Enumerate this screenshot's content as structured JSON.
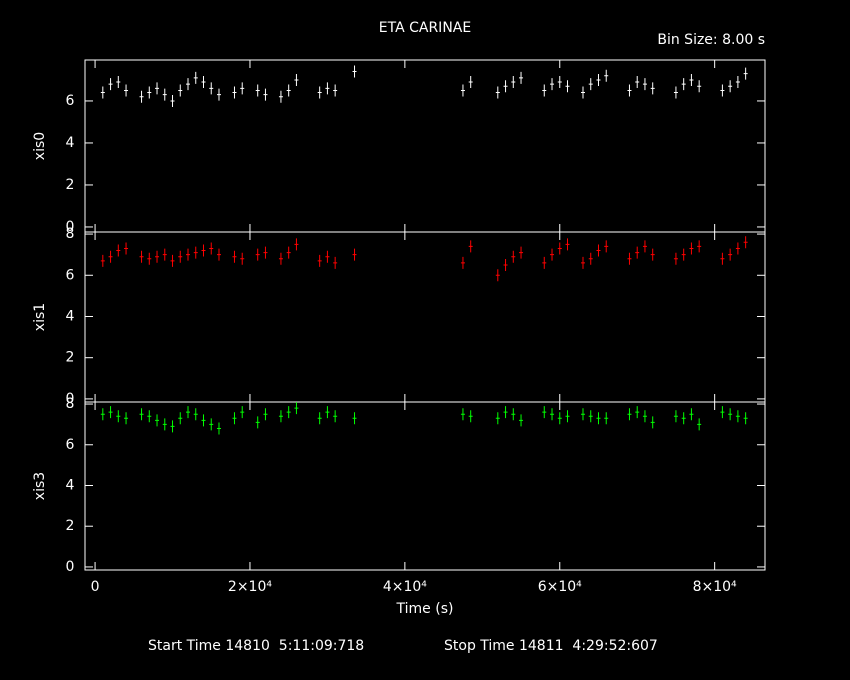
{
  "chart_data": {
    "type": "scatter",
    "title": "ETA CARINAE",
    "subtitle": "Bin Size: 8.00 s",
    "x_label": "Time (s)",
    "annotations": [
      "Start Time 14810  5:11:09:718",
      "Stop Time 14811  4:29:52:607"
    ],
    "x": [
      1000,
      2000,
      3000,
      4000,
      6000,
      7000,
      8000,
      9000,
      10000,
      11000,
      12000,
      13000,
      14000,
      15000,
      16000,
      18000,
      19000,
      21000,
      22000,
      24000,
      25000,
      26000,
      29000,
      30000,
      31000,
      33500,
      47500,
      48500,
      52000,
      53000,
      54000,
      55000,
      58000,
      59000,
      60000,
      61000,
      63000,
      64000,
      65000,
      66000,
      69000,
      70000,
      71000,
      72000,
      75000,
      76000,
      77000,
      78000,
      81000,
      82000,
      83000,
      84000
    ],
    "xlim": [
      -1300,
      86500
    ],
    "xticks": [
      0,
      {
        "value": 20000,
        "label": "2×10⁴"
      },
      {
        "value": 40000,
        "label": "4×10⁴"
      },
      {
        "value": 60000,
        "label": "6×10⁴"
      },
      {
        "value": 80000,
        "label": "8×10⁴"
      }
    ],
    "series": [
      {
        "name": "xis0",
        "color": "#ffffff",
        "ylim": [
          -0.24,
          7.95
        ],
        "yticks": [
          0,
          2,
          4,
          6
        ],
        "values": [
          6.4,
          6.8,
          6.9,
          6.5,
          6.2,
          6.4,
          6.6,
          6.3,
          6.0,
          6.5,
          6.8,
          7.1,
          6.9,
          6.6,
          6.3,
          6.4,
          6.6,
          6.5,
          6.3,
          6.2,
          6.5,
          7.0,
          6.4,
          6.6,
          6.5,
          7.4,
          6.5,
          6.9,
          6.4,
          6.7,
          6.9,
          7.1,
          6.5,
          6.8,
          6.9,
          6.7,
          6.4,
          6.8,
          7.0,
          7.2,
          6.5,
          6.9,
          6.8,
          6.6,
          6.4,
          6.8,
          7.0,
          6.7,
          6.5,
          6.7,
          6.9,
          7.3
        ]
      },
      {
        "name": "xis1",
        "color": "#ff0000",
        "ylim": [
          -0.15,
          8.1
        ],
        "yticks": [
          0,
          2,
          4,
          6,
          8
        ],
        "values": [
          6.7,
          6.9,
          7.2,
          7.3,
          6.9,
          6.8,
          6.9,
          7.0,
          6.7,
          6.9,
          7.0,
          7.1,
          7.2,
          7.3,
          7.0,
          6.9,
          6.8,
          7.0,
          7.1,
          6.8,
          7.1,
          7.5,
          6.7,
          6.9,
          6.6,
          7.0,
          6.6,
          7.4,
          6.0,
          6.5,
          6.9,
          7.1,
          6.6,
          7.0,
          7.3,
          7.5,
          6.6,
          6.8,
          7.2,
          7.4,
          6.8,
          7.1,
          7.4,
          7.0,
          6.8,
          7.0,
          7.3,
          7.4,
          6.8,
          7.0,
          7.3,
          7.6
        ]
      },
      {
        "name": "xis3",
        "color": "#00ff00",
        "ylim": [
          -0.15,
          8.1
        ],
        "yticks": [
          0,
          2,
          4,
          6,
          8
        ],
        "values": [
          7.5,
          7.6,
          7.4,
          7.3,
          7.5,
          7.4,
          7.2,
          7.0,
          6.9,
          7.3,
          7.6,
          7.5,
          7.2,
          7.0,
          6.8,
          7.3,
          7.6,
          7.1,
          7.5,
          7.4,
          7.6,
          7.8,
          7.3,
          7.6,
          7.4,
          7.3,
          7.5,
          7.4,
          7.3,
          7.6,
          7.5,
          7.2,
          7.6,
          7.5,
          7.3,
          7.4,
          7.5,
          7.4,
          7.3,
          7.3,
          7.5,
          7.6,
          7.4,
          7.1,
          7.4,
          7.3,
          7.5,
          7.0,
          7.6,
          7.5,
          7.4,
          7.3
        ]
      }
    ]
  }
}
